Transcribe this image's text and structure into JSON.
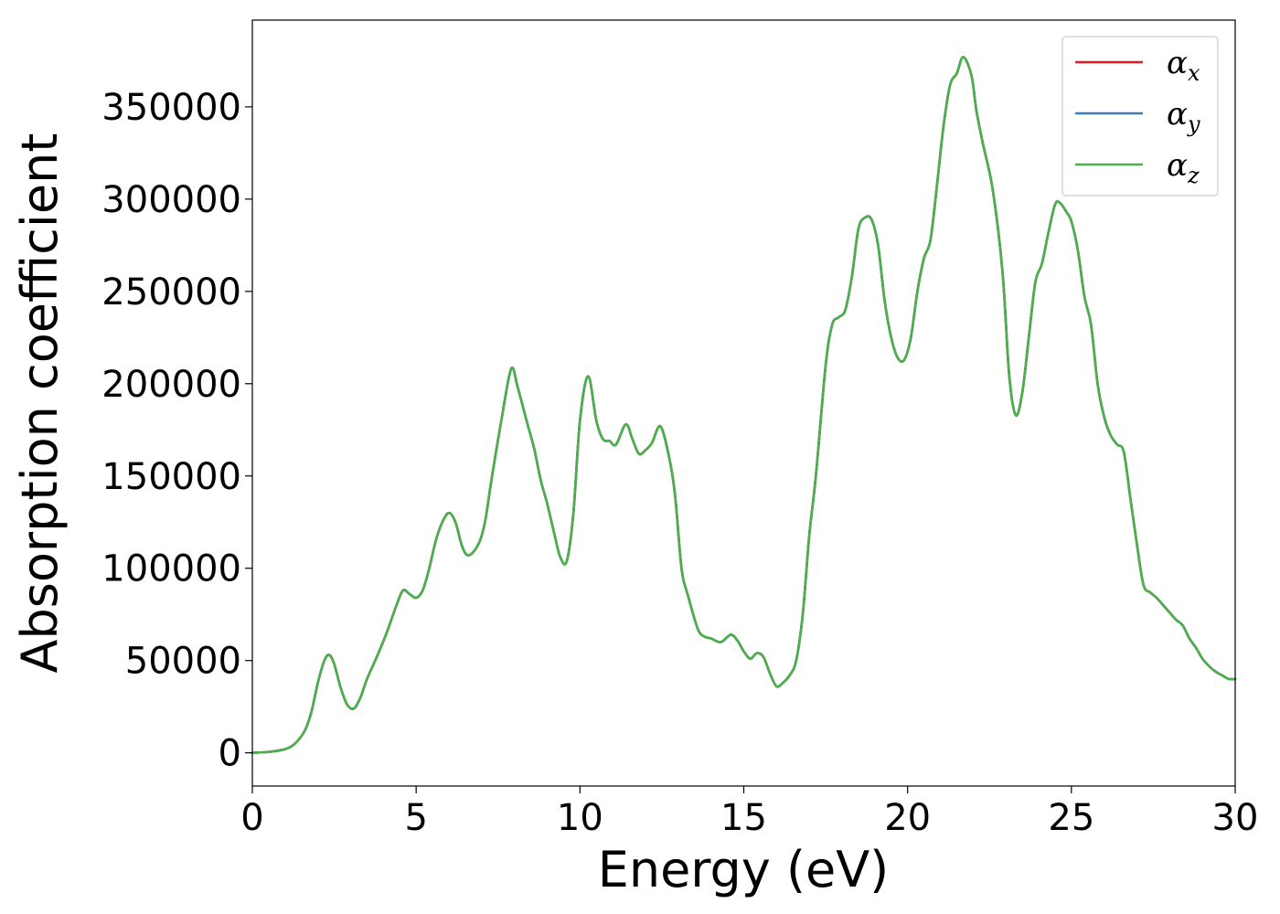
{
  "chart_data": {
    "type": "line",
    "title": "",
    "xlabel": "Energy (eV)",
    "ylabel": "Absorption coefficient",
    "xlim": [
      0,
      30
    ],
    "ylim": [
      -18000,
      397000
    ],
    "xticks": [
      "0",
      "5",
      "10",
      "15",
      "20",
      "25",
      "30"
    ],
    "yticks": [
      "0",
      "50000",
      "100000",
      "150000",
      "200000",
      "250000",
      "300000",
      "350000"
    ],
    "grid": false,
    "legend_position": "top-right",
    "x": [
      0,
      0.5,
      1.0,
      1.3,
      1.6,
      1.8,
      2.0,
      2.2,
      2.35,
      2.5,
      2.7,
      2.9,
      3.1,
      3.3,
      3.5,
      3.8,
      4.1,
      4.4,
      4.6,
      4.8,
      5.0,
      5.2,
      5.4,
      5.6,
      5.8,
      6.0,
      6.2,
      6.4,
      6.6,
      6.9,
      7.1,
      7.3,
      7.6,
      7.9,
      8.1,
      8.4,
      8.6,
      8.8,
      9.0,
      9.2,
      9.4,
      9.6,
      9.8,
      10.0,
      10.25,
      10.5,
      10.7,
      10.9,
      11.1,
      11.4,
      11.6,
      11.8,
      12.0,
      12.2,
      12.45,
      12.7,
      12.9,
      13.1,
      13.3,
      13.6,
      13.8,
      14.0,
      14.3,
      14.6,
      14.8,
      15.0,
      15.2,
      15.4,
      15.6,
      15.8,
      16.0,
      16.2,
      16.4,
      16.6,
      16.8,
      17.0,
      17.2,
      17.5,
      17.7,
      17.9,
      18.1,
      18.3,
      18.5,
      18.7,
      18.9,
      19.1,
      19.3,
      19.5,
      19.7,
      19.9,
      20.1,
      20.3,
      20.5,
      20.7,
      20.9,
      21.1,
      21.3,
      21.5,
      21.7,
      21.95,
      22.1,
      22.3,
      22.6,
      22.9,
      23.1,
      23.3,
      23.5,
      23.7,
      23.9,
      24.1,
      24.3,
      24.5,
      24.65,
      24.85,
      25.0,
      25.2,
      25.4,
      25.6,
      25.8,
      26.0,
      26.2,
      26.4,
      26.6,
      26.8,
      27.0,
      27.2,
      27.4,
      27.6,
      27.8,
      28.0,
      28.2,
      28.4,
      28.6,
      28.8,
      29.0,
      29.2,
      29.4,
      29.6,
      29.8,
      30.0
    ],
    "series": [
      {
        "name": "αx",
        "color": "#e41a1c",
        "values": [
          0,
          500,
          2000,
          5000,
          12000,
          22000,
          38000,
          50000,
          53000,
          48000,
          35000,
          26000,
          24000,
          30000,
          40000,
          52000,
          65000,
          80000,
          88000,
          86000,
          84000,
          88000,
          100000,
          115000,
          125000,
          130000,
          125000,
          112000,
          107000,
          113000,
          125000,
          148000,
          180000,
          208000,
          198000,
          178000,
          165000,
          148000,
          135000,
          120000,
          106000,
          104000,
          130000,
          180000,
          204000,
          180000,
          170000,
          169000,
          167000,
          178000,
          170000,
          162000,
          164000,
          168000,
          177000,
          162000,
          140000,
          100000,
          85000,
          67000,
          63000,
          62000,
          60000,
          64000,
          61000,
          55000,
          51000,
          54000,
          52000,
          43000,
          36000,
          38000,
          42000,
          50000,
          75000,
          118000,
          150000,
          210000,
          232000,
          236000,
          240000,
          258000,
          284000,
          290000,
          289000,
          275000,
          245000,
          225000,
          214000,
          213000,
          225000,
          250000,
          268000,
          278000,
          308000,
          340000,
          362000,
          368000,
          377000,
          367000,
          348000,
          330000,
          305000,
          260000,
          205000,
          183000,
          195000,
          225000,
          255000,
          265000,
          282000,
          297000,
          298000,
          293000,
          288000,
          272000,
          247000,
          232000,
          200000,
          182000,
          172000,
          167000,
          163000,
          138000,
          113000,
          91000,
          87000,
          84000,
          80000,
          76000,
          72000,
          69000,
          62000,
          57000,
          51000,
          47000,
          44000,
          42000,
          40000,
          40000
        ]
      },
      {
        "name": "αy",
        "color": "#377eb8",
        "values": [
          0,
          500,
          2000,
          5000,
          12000,
          22000,
          38000,
          50000,
          53000,
          48000,
          35000,
          26000,
          24000,
          30000,
          40000,
          52000,
          65000,
          80000,
          88000,
          86000,
          84000,
          88000,
          100000,
          115000,
          125000,
          130000,
          125000,
          112000,
          107000,
          113000,
          125000,
          148000,
          180000,
          208000,
          198000,
          178000,
          165000,
          148000,
          135000,
          120000,
          106000,
          104000,
          130000,
          180000,
          204000,
          180000,
          170000,
          169000,
          167000,
          178000,
          170000,
          162000,
          164000,
          168000,
          177000,
          162000,
          140000,
          100000,
          85000,
          67000,
          63000,
          62000,
          60000,
          64000,
          61000,
          55000,
          51000,
          54000,
          52000,
          43000,
          36000,
          38000,
          42000,
          50000,
          75000,
          118000,
          150000,
          210000,
          232000,
          236000,
          240000,
          258000,
          284000,
          290000,
          289000,
          275000,
          245000,
          225000,
          214000,
          213000,
          225000,
          250000,
          268000,
          278000,
          308000,
          340000,
          362000,
          368000,
          377000,
          367000,
          348000,
          330000,
          305000,
          260000,
          205000,
          183000,
          195000,
          225000,
          255000,
          265000,
          282000,
          297000,
          298000,
          293000,
          288000,
          272000,
          247000,
          232000,
          200000,
          182000,
          172000,
          167000,
          163000,
          138000,
          113000,
          91000,
          87000,
          84000,
          80000,
          76000,
          72000,
          69000,
          62000,
          57000,
          51000,
          47000,
          44000,
          42000,
          40000,
          40000
        ]
      },
      {
        "name": "αz",
        "color": "#4daf4a",
        "values": [
          0,
          500,
          2000,
          5000,
          12000,
          22000,
          38000,
          50000,
          53000,
          48000,
          35000,
          26000,
          24000,
          30000,
          40000,
          52000,
          65000,
          80000,
          88000,
          86000,
          84000,
          88000,
          100000,
          115000,
          125000,
          130000,
          125000,
          112000,
          107000,
          113000,
          125000,
          148000,
          180000,
          208000,
          198000,
          178000,
          165000,
          148000,
          135000,
          120000,
          106000,
          104000,
          130000,
          180000,
          204000,
          180000,
          170000,
          169000,
          167000,
          178000,
          170000,
          162000,
          164000,
          168000,
          177000,
          162000,
          140000,
          100000,
          85000,
          67000,
          63000,
          62000,
          60000,
          64000,
          61000,
          55000,
          51000,
          54000,
          52000,
          43000,
          36000,
          38000,
          42000,
          50000,
          75000,
          118000,
          150000,
          210000,
          232000,
          236000,
          240000,
          258000,
          284000,
          290000,
          289000,
          275000,
          245000,
          225000,
          214000,
          213000,
          225000,
          250000,
          268000,
          278000,
          308000,
          340000,
          362000,
          368000,
          377000,
          367000,
          348000,
          330000,
          305000,
          260000,
          205000,
          183000,
          195000,
          225000,
          255000,
          265000,
          282000,
          297000,
          298000,
          293000,
          288000,
          272000,
          247000,
          232000,
          200000,
          182000,
          172000,
          167000,
          163000,
          138000,
          113000,
          91000,
          87000,
          84000,
          80000,
          76000,
          72000,
          69000,
          62000,
          57000,
          51000,
          47000,
          44000,
          42000,
          40000,
          40000
        ]
      }
    ],
    "legend": [
      {
        "base": "α",
        "sub": "x"
      },
      {
        "base": "α",
        "sub": "y"
      },
      {
        "base": "α",
        "sub": "z"
      }
    ]
  }
}
